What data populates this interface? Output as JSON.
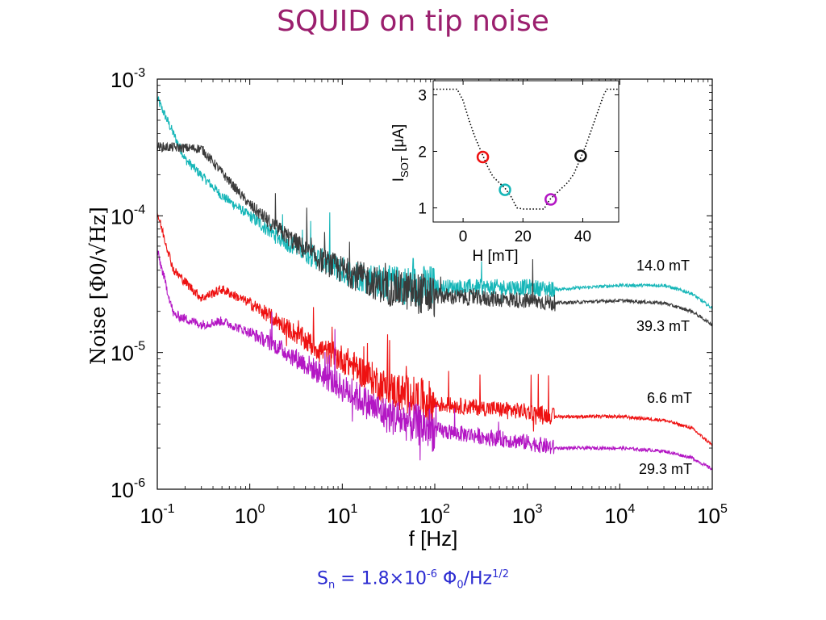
{
  "slide": {
    "title": "SQUID on tip noise",
    "formula": {
      "lhs": "S",
      "lhs_sub": "n",
      "eq": " = 1.8×10",
      "exp": "-6",
      "unit1": " Φ",
      "unit1_sub": "0",
      "unit2": "/Hz",
      "unit2_sup": "1/2"
    }
  },
  "colors": {
    "title": "#9b1f6e",
    "formula": "#2b2bd1",
    "cyan": "#16b6b8",
    "black": "#3a3a3a",
    "red": "#ee1111",
    "magenta": "#b316c4"
  },
  "chart_data": [
    {
      "type": "line",
      "x_scale": "log",
      "y_scale": "log",
      "xlim": [
        0.1,
        100000
      ],
      "ylim": [
        1e-06,
        0.001
      ],
      "xlabel": "f [Hz]",
      "ylabel": "Noise [Φ0/√Hz]",
      "x_ticks": [
        {
          "value": 0.1,
          "base": "10",
          "exp": "-1"
        },
        {
          "value": 1,
          "base": "10",
          "exp": "0"
        },
        {
          "value": 10,
          "base": "10",
          "exp": "1"
        },
        {
          "value": 100,
          "base": "10",
          "exp": "2"
        },
        {
          "value": 1000,
          "base": "10",
          "exp": "3"
        },
        {
          "value": 10000,
          "base": "10",
          "exp": "4"
        },
        {
          "value": 100000,
          "base": "10",
          "exp": "5"
        }
      ],
      "y_ticks": [
        {
          "value": 0.001,
          "base": "10",
          "exp": "-3"
        },
        {
          "value": 0.0001,
          "base": "10",
          "exp": "-4"
        },
        {
          "value": 1e-05,
          "base": "10",
          "exp": "-5"
        },
        {
          "value": 1e-06,
          "base": "10",
          "exp": "-6"
        }
      ],
      "series": [
        {
          "name": "14.0 mT",
          "color": "#16b6b8",
          "points": [
            [
              0.1,
              0.00072
            ],
            [
              0.2,
              0.00026
            ],
            [
              0.5,
              0.00014
            ],
            [
              1,
              0.0001
            ],
            [
              2,
              7e-05
            ],
            [
              5,
              5e-05
            ],
            [
              10,
              4e-05
            ],
            [
              30,
              3.2e-05
            ],
            [
              100,
              3e-05
            ],
            [
              1000,
              3e-05
            ],
            [
              2000,
              2.9e-05
            ],
            [
              10000,
              3.1e-05
            ],
            [
              30000,
              3.1e-05
            ],
            [
              60000,
              2.7e-05
            ],
            [
              100000,
              2.1e-05
            ]
          ]
        },
        {
          "name": "39.3 mT",
          "color": "#3a3a3a",
          "points": [
            [
              0.1,
              0.00032
            ],
            [
              0.3,
              0.00031
            ],
            [
              1,
              0.00012
            ],
            [
              2,
              8e-05
            ],
            [
              5,
              5e-05
            ],
            [
              10,
              4e-05
            ],
            [
              30,
              3e-05
            ],
            [
              100,
              2.6e-05
            ],
            [
              1000,
              2.4e-05
            ],
            [
              2000,
              2.3e-05
            ],
            [
              10000,
              2.4e-05
            ],
            [
              30000,
              2.3e-05
            ],
            [
              60000,
              2e-05
            ],
            [
              100000,
              1.6e-05
            ]
          ]
        },
        {
          "name": "6.6 mT",
          "color": "#ee1111",
          "points": [
            [
              0.1,
              0.000105
            ],
            [
              0.15,
              4e-05
            ],
            [
              0.3,
              2.5e-05
            ],
            [
              0.5,
              2.9e-05
            ],
            [
              1,
              2.3e-05
            ],
            [
              2,
              1.7e-05
            ],
            [
              5,
              1.1e-05
            ],
            [
              10,
              9e-06
            ],
            [
              30,
              5.5e-06
            ],
            [
              100,
              4.2e-06
            ],
            [
              1000,
              3.7e-06
            ],
            [
              2000,
              3.4e-06
            ],
            [
              10000,
              3.4e-06
            ],
            [
              30000,
              3.2e-06
            ],
            [
              60000,
              2.8e-06
            ],
            [
              100000,
              2.1e-06
            ]
          ]
        },
        {
          "name": "29.3 mT",
          "color": "#b316c4",
          "points": [
            [
              0.1,
              5.5e-05
            ],
            [
              0.15,
              1.9e-05
            ],
            [
              0.3,
              1.6e-05
            ],
            [
              0.5,
              1.7e-05
            ],
            [
              1,
              1.4e-05
            ],
            [
              2,
              1.1e-05
            ],
            [
              5,
              7.5e-06
            ],
            [
              10,
              5.5e-06
            ],
            [
              30,
              3.5e-06
            ],
            [
              100,
              2.7e-06
            ],
            [
              1000,
              2.2e-06
            ],
            [
              2000,
              2e-06
            ],
            [
              10000,
              2e-06
            ],
            [
              30000,
              1.9e-06
            ],
            [
              60000,
              1.7e-06
            ],
            [
              100000,
              1.4e-06
            ]
          ]
        }
      ]
    },
    {
      "type": "line",
      "subtitle": "inset",
      "xlim": [
        -10,
        52
      ],
      "ylim": [
        0.75,
        3.25
      ],
      "xlabel": "H [mT]",
      "ylabel": "I_SOT [μA]",
      "ylabel_main": "I",
      "ylabel_sub": "SOT",
      "ylabel_rest": " [μA]",
      "x_ticks": [
        0,
        20,
        40
      ],
      "y_ticks": [
        1,
        2,
        3
      ],
      "curve": [
        [
          -10,
          3.1
        ],
        [
          -2,
          3.1
        ],
        [
          0,
          2.9
        ],
        [
          2,
          2.55
        ],
        [
          4,
          2.25
        ],
        [
          6,
          2.0
        ],
        [
          8,
          1.75
        ],
        [
          10,
          1.55
        ],
        [
          12,
          1.45
        ],
        [
          14,
          1.35
        ],
        [
          16,
          1.2
        ],
        [
          18,
          1.0
        ],
        [
          20,
          0.98
        ],
        [
          24,
          0.98
        ],
        [
          27,
          0.98
        ],
        [
          29,
          1.15
        ],
        [
          31,
          1.25
        ],
        [
          33,
          1.35
        ],
        [
          35,
          1.45
        ],
        [
          37,
          1.6
        ],
        [
          39,
          1.85
        ],
        [
          41,
          2.1
        ],
        [
          43,
          2.4
        ],
        [
          45,
          2.7
        ],
        [
          47,
          3.0
        ],
        [
          48,
          3.1
        ],
        [
          52,
          3.1
        ]
      ],
      "markers": [
        {
          "h": 6.6,
          "i": 1.9,
          "color": "#ee1111"
        },
        {
          "h": 14.0,
          "i": 1.32,
          "color": "#16b6b8"
        },
        {
          "h": 29.3,
          "i": 1.15,
          "color": "#b316c4"
        },
        {
          "h": 39.3,
          "i": 1.92,
          "color": "#111111"
        }
      ]
    }
  ]
}
